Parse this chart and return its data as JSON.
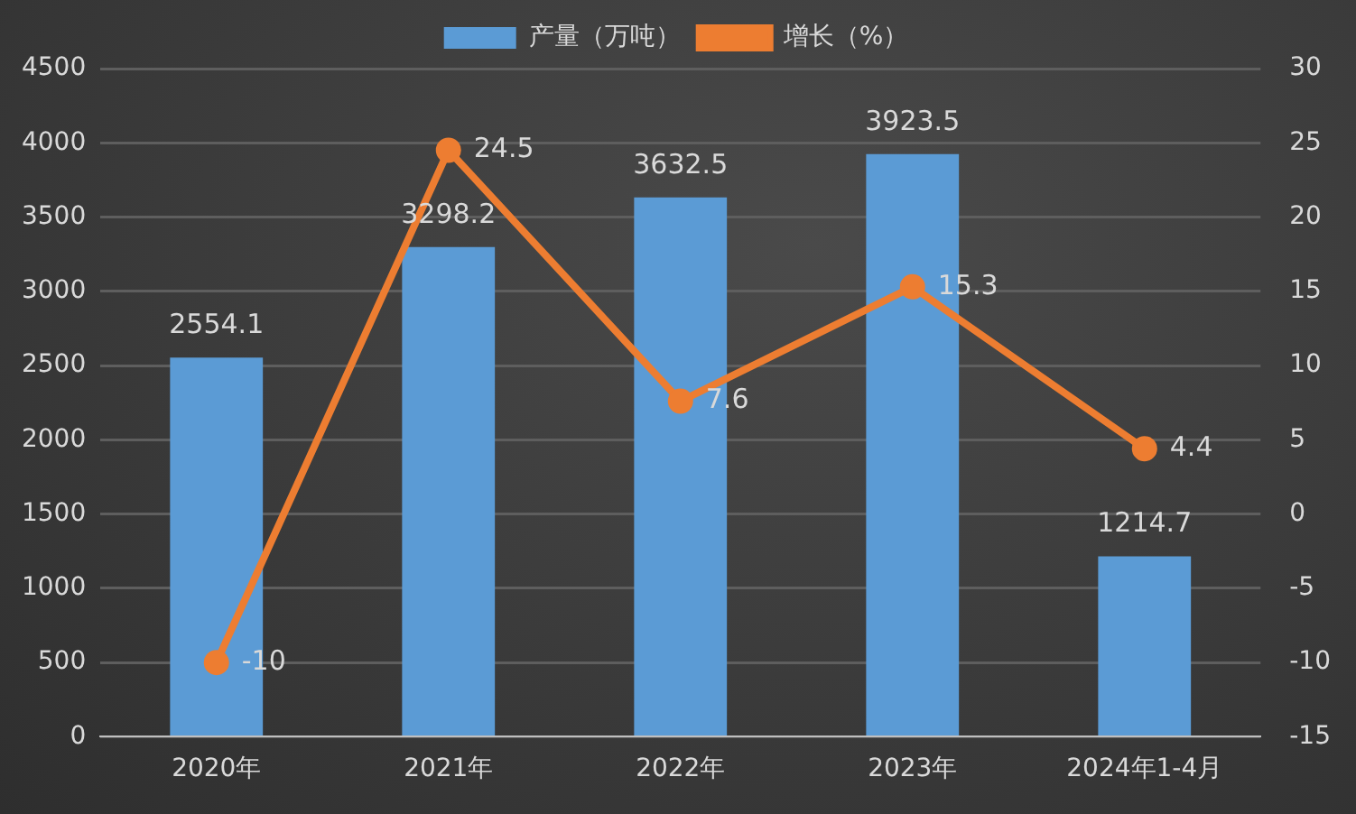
{
  "chart_data": {
    "type": "bar",
    "categories": [
      "2020年",
      "2021年",
      "2022年",
      "2023年",
      "2024年1-4月"
    ],
    "series": [
      {
        "name": "产量（万吨）",
        "color": "#5b9bd5",
        "values": [
          2554.1,
          3298.2,
          3632.5,
          3923.5,
          1214.7
        ]
      },
      {
        "name": "增长（%）",
        "type": "line",
        "axis": "y2",
        "color": "#ed7d31",
        "values": [
          -10,
          24.5,
          7.6,
          15.3,
          4.4
        ]
      }
    ],
    "ylim": [
      0,
      4500
    ],
    "yticks": [
      0,
      500,
      1000,
      1500,
      2000,
      2500,
      3000,
      3500,
      4000,
      4500
    ],
    "y2lim": [
      -15,
      30
    ],
    "y2ticks": [
      -15,
      -10,
      -5,
      0,
      5,
      10,
      15,
      20,
      25,
      30
    ],
    "grid": "y",
    "legend": "top",
    "marker": "circle",
    "line_style": "solid",
    "data_labels": true
  }
}
